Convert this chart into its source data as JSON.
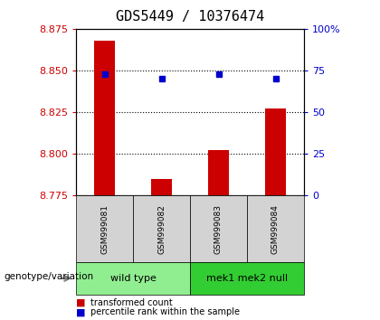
{
  "title": "GDS5449 / 10376474",
  "samples": [
    "GSM999081",
    "GSM999082",
    "GSM999083",
    "GSM999084"
  ],
  "bar_values": [
    8.868,
    8.785,
    8.802,
    8.827
  ],
  "blue_dot_values": [
    8.848,
    8.845,
    8.848,
    8.845
  ],
  "bar_bottom": 8.775,
  "ylim_left": [
    8.775,
    8.875
  ],
  "ylim_right": [
    0,
    100
  ],
  "yticks_left": [
    8.775,
    8.8,
    8.825,
    8.85,
    8.875
  ],
  "yticks_right": [
    0,
    25,
    50,
    75,
    100
  ],
  "ytick_labels_right": [
    "0",
    "25",
    "50",
    "75",
    "100%"
  ],
  "groups": [
    {
      "label": "wild type",
      "samples": [
        0,
        1
      ],
      "color": "#90EE90"
    },
    {
      "label": "mek1 mek2 null",
      "samples": [
        2,
        3
      ],
      "color": "#32CD32"
    }
  ],
  "bar_color": "#CC0000",
  "blue_dot_color": "#0000CC",
  "grid_color": "#000000",
  "left_label_color": "#CC0000",
  "right_label_color": "#0000CC",
  "genotype_label": "genotype/variation",
  "legend_items": [
    {
      "color": "#CC0000",
      "label": "transformed count"
    },
    {
      "color": "#0000CC",
      "label": "percentile rank within the sample"
    }
  ],
  "tick_area_bg": "#d3d3d3",
  "title_fontsize": 11,
  "tick_fontsize": 8,
  "label_fontsize": 8
}
